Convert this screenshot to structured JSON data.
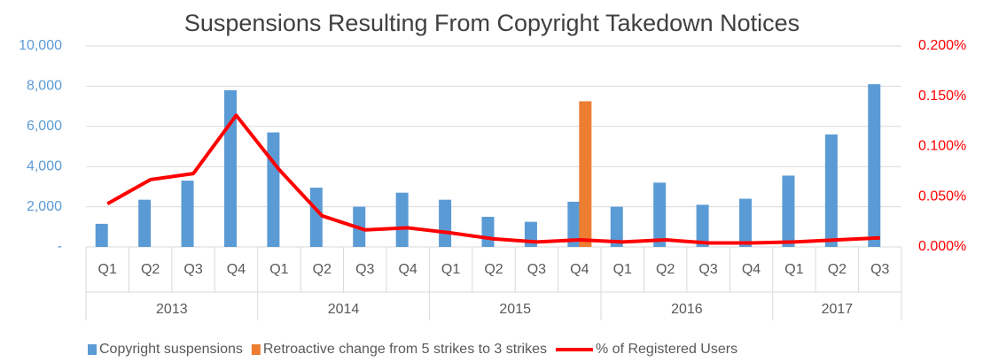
{
  "chart_data": {
    "type": "bar",
    "title": "Suspensions Resulting From Copyright Takedown Notices",
    "categories": [
      "Q1",
      "Q2",
      "Q3",
      "Q4",
      "Q1",
      "Q2",
      "Q3",
      "Q4",
      "Q1",
      "Q2",
      "Q3",
      "Q4",
      "Q1",
      "Q2",
      "Q3",
      "Q4",
      "Q1",
      "Q2",
      "Q3"
    ],
    "category_groups": [
      {
        "label": "2013",
        "span": 4
      },
      {
        "label": "2014",
        "span": 4
      },
      {
        "label": "2015",
        "span": 4
      },
      {
        "label": "2016",
        "span": 4
      },
      {
        "label": "2017",
        "span": 3
      }
    ],
    "series": [
      {
        "name": "Copyright suspensions",
        "type": "bar",
        "axis": "y",
        "color": "#5b9bd5",
        "values": [
          1150,
          2350,
          3300,
          7800,
          5700,
          2950,
          2000,
          2700,
          2350,
          1500,
          1250,
          2250,
          2000,
          3200,
          2100,
          2400,
          3550,
          5600,
          8100
        ]
      },
      {
        "name": "Retroactive change from 5 strikes to 3 strikes",
        "type": "bar",
        "axis": "y",
        "color": "#ed7d31",
        "values": [
          null,
          null,
          null,
          null,
          null,
          null,
          null,
          null,
          null,
          null,
          null,
          7250,
          null,
          null,
          null,
          null,
          null,
          null,
          null
        ]
      },
      {
        "name": "% of Registered Users",
        "type": "line",
        "axis": "y2",
        "color": "#ff0000",
        "values": [
          0.043,
          0.067,
          0.073,
          0.131,
          0.077,
          0.031,
          0.017,
          0.019,
          0.014,
          0.008,
          0.005,
          0.007,
          0.005,
          0.007,
          0.004,
          0.004,
          0.005,
          0.007,
          0.009
        ]
      }
    ],
    "ylim": [
      0,
      10000
    ],
    "yticks": [
      {
        "value": 0,
        "label": "-"
      },
      {
        "value": 2000,
        "label": "2,000"
      },
      {
        "value": 4000,
        "label": "4,000"
      },
      {
        "value": 6000,
        "label": "6,000"
      },
      {
        "value": 8000,
        "label": "8,000"
      },
      {
        "value": 10000,
        "label": "10,000"
      }
    ],
    "y2lim": [
      0,
      0.2
    ],
    "y2ticks": [
      {
        "value": 0,
        "label": "0.000%"
      },
      {
        "value": 0.05,
        "label": "0.050%"
      },
      {
        "value": 0.1,
        "label": "0.100%"
      },
      {
        "value": 0.15,
        "label": "0.150%"
      },
      {
        "value": 0.2,
        "label": "0.200%"
      }
    ],
    "grid": true,
    "legend": "bottom"
  }
}
